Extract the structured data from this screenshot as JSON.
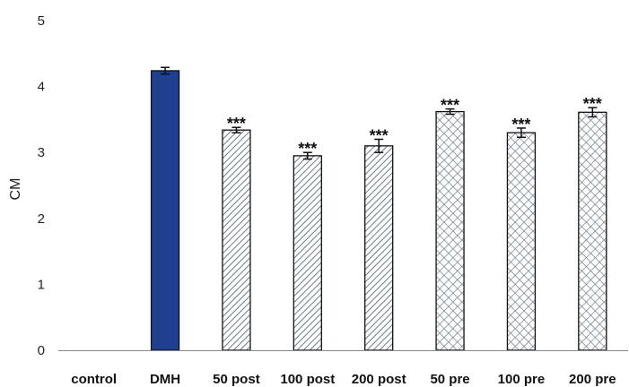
{
  "chart_data": {
    "type": "bar",
    "ylabel": "CM",
    "ylim": [
      0,
      5
    ],
    "yticks": [
      0,
      1,
      2,
      3,
      4,
      5
    ],
    "grid": false,
    "legend": "none",
    "categories": [
      "control",
      "DMH",
      "50 post",
      "100 post",
      "200 post",
      "50 pre",
      "100 pre",
      "200 pre"
    ],
    "values": [
      0,
      4.24,
      3.34,
      2.95,
      3.1,
      3.62,
      3.3,
      3.61
    ],
    "errors": [
      0,
      0.05,
      0.04,
      0.05,
      0.1,
      0.04,
      0.07,
      0.07
    ],
    "annotations": [
      "",
      "",
      "***",
      "***",
      "***",
      "***",
      "***",
      "***"
    ],
    "patterns": [
      "none",
      "solid",
      "diagonal",
      "diagonal",
      "diagonal",
      "crosshatch",
      "crosshatch",
      "crosshatch"
    ],
    "colors": {
      "solid_fill": "#1f3f8f",
      "pattern_stroke": "#6d7a8c",
      "bar_outline": "#111111",
      "axis": "#888888"
    }
  }
}
